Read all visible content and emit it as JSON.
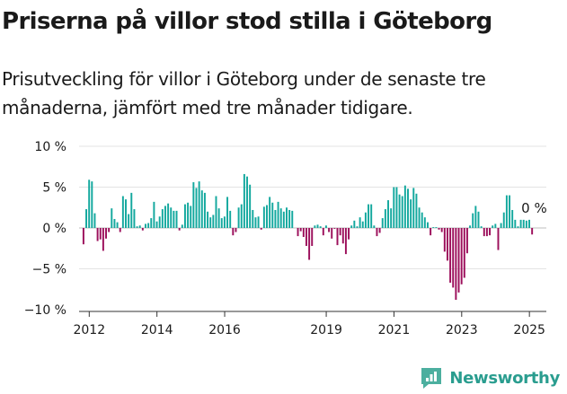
{
  "header": {
    "title": "Priserna på villor stod stilla i Göteborg",
    "subtitle": "Prisutveckling för villor i Göteborg under de senaste tre månaderna, jämfört med tre månader tidigare."
  },
  "brand": {
    "name": "Newsworthy",
    "icon": "newsworthy-logo-icon"
  },
  "colors": {
    "positive": "#13a89e",
    "negative": "#9c0f5b",
    "grid": "#e3e3e3",
    "axis": "#333333"
  },
  "chart_data": {
    "type": "bar",
    "title": "",
    "xlabel": "",
    "ylabel": "",
    "ylim": [
      -10,
      10
    ],
    "y_ticks": [
      10,
      5,
      0,
      -5,
      -10
    ],
    "y_tick_labels": [
      "10 %",
      "5 %",
      "0 %",
      "−5 %",
      "−10 %"
    ],
    "x_ticks": [
      2012,
      2014,
      2016,
      2019,
      2021,
      2023,
      2025
    ],
    "x_start": 2011.83,
    "x_step": 0.08333,
    "annotation": {
      "text": "0 %",
      "value": 0
    },
    "values": [
      -2.0,
      2.3,
      5.9,
      5.7,
      1.8,
      -1.6,
      -1.4,
      -2.8,
      -1.3,
      -0.5,
      2.4,
      1.1,
      0.7,
      -0.5,
      3.9,
      3.5,
      1.7,
      4.3,
      2.3,
      0.2,
      0.3,
      -0.3,
      0.5,
      0.6,
      1.2,
      3.2,
      0.8,
      1.4,
      2.3,
      2.7,
      3.0,
      2.5,
      2.1,
      2.1,
      -0.3,
      0.4,
      2.9,
      3.1,
      2.7,
      5.6,
      4.9,
      5.7,
      4.6,
      4.3,
      2.0,
      1.3,
      1.6,
      3.9,
      2.4,
      1.2,
      1.4,
      3.8,
      2.1,
      -0.9,
      -0.5,
      2.5,
      2.9,
      6.6,
      6.3,
      5.3,
      2.2,
      1.3,
      1.4,
      -0.2,
      2.6,
      2.8,
      3.8,
      3.1,
      2.2,
      3.2,
      2.4,
      2.0,
      2.5,
      2.2,
      2.1,
      0.0,
      -1.0,
      -0.4,
      -1.1,
      -2.2,
      -3.9,
      -2.2,
      0.3,
      0.4,
      0.2,
      -0.9,
      0.3,
      -0.5,
      -1.3,
      -0.1,
      -2.1,
      -0.9,
      -1.9,
      -3.2,
      -1.4,
      0.3,
      0.9,
      0.2,
      1.3,
      0.8,
      1.9,
      2.9,
      2.9,
      0.3,
      -1.0,
      -0.6,
      1.2,
      2.3,
      3.4,
      2.4,
      5.0,
      5.0,
      4.1,
      3.9,
      5.2,
      4.8,
      3.5,
      4.9,
      4.2,
      2.5,
      1.9,
      1.3,
      0.7,
      -0.9,
      0.1,
      0.1,
      -0.2,
      -0.5,
      -2.9,
      -4.0,
      -6.7,
      -7.3,
      -8.8,
      -7.9,
      -6.9,
      -6.1,
      -3.1,
      0.3,
      1.8,
      2.7,
      2.0,
      0.2,
      -1.0,
      -1.0,
      -0.9,
      0.3,
      0.5,
      -2.7,
      0.6,
      1.9,
      4.0,
      4.0,
      2.2,
      1.0,
      0.2,
      1.0,
      1.0,
      0.9,
      1.0,
      -0.8
    ]
  }
}
